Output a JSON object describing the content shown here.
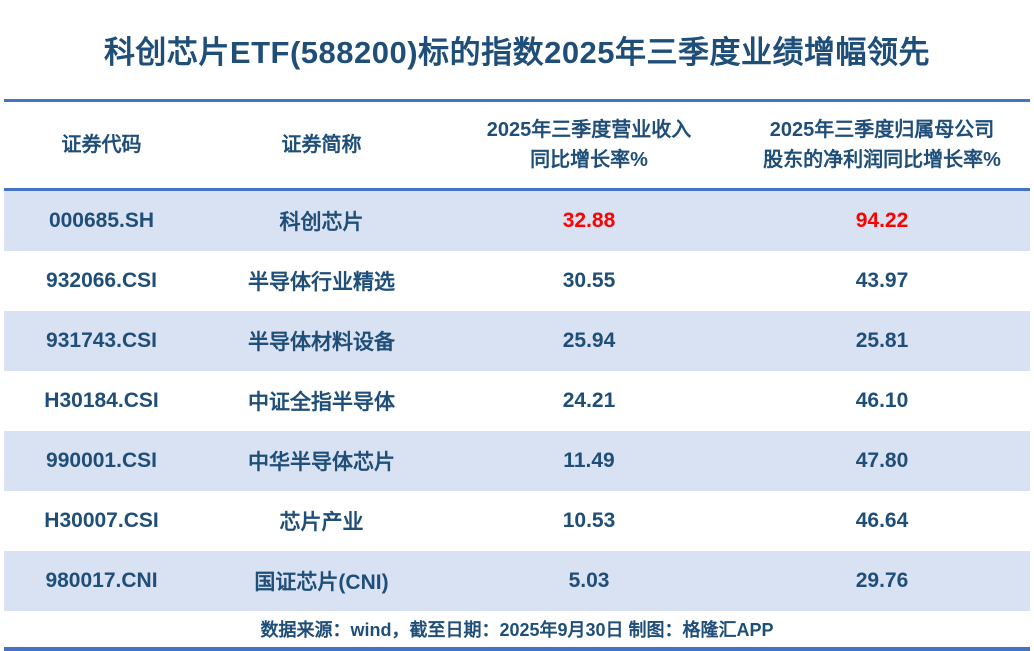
{
  "title": "科创芯片ETF(588200)标的指数2025年三季度业绩增幅领先",
  "table": {
    "headers": {
      "code": "证券代码",
      "name": "证券简称",
      "revenue_line1": "2025年三季度营业收入",
      "revenue_line2": "同比增长率%",
      "profit_line1": "2025年三季度归属母公司",
      "profit_line2": "股东的净利润同比增长率%"
    },
    "rows": [
      {
        "code": "000685.SH",
        "name": "科创芯片",
        "revenue": "32.88",
        "profit": "94.22"
      },
      {
        "code": "932066.CSI",
        "name": "半导体行业精选",
        "revenue": "30.55",
        "profit": "43.97"
      },
      {
        "code": "931743.CSI",
        "name": "半导体材料设备",
        "revenue": "25.94",
        "profit": "25.81"
      },
      {
        "code": "H30184.CSI",
        "name": "中证全指半导体",
        "revenue": "24.21",
        "profit": "46.10"
      },
      {
        "code": "990001.CSI",
        "name": "中华半导体芯片",
        "revenue": "11.49",
        "profit": "47.80"
      },
      {
        "code": "H30007.CSI",
        "name": "芯片产业",
        "revenue": "10.53",
        "profit": "46.64"
      },
      {
        "code": "980017.CNI",
        "name": "国证芯片(CNI)",
        "revenue": "5.03",
        "profit": "29.76"
      }
    ]
  },
  "footer": "数据来源：wind，截至日期：2025年9月30日 制图：格隆汇APP",
  "colors": {
    "accent_line": "#4472C4",
    "row_alt_bg": "#D9E2F3",
    "text_navy": "#1F4E79",
    "highlight_red": "#FF0000"
  },
  "chart_data": {
    "type": "table",
    "title": "科创芯片ETF(588200)标的指数2025年三季度业绩增幅领先",
    "columns": [
      "证券代码",
      "证券简称",
      "2025年三季度营业收入同比增长率%",
      "2025年三季度归属母公司股东的净利润同比增长率%"
    ],
    "rows": [
      [
        "000685.SH",
        "科创芯片",
        32.88,
        94.22
      ],
      [
        "932066.CSI",
        "半导体行业精选",
        30.55,
        43.97
      ],
      [
        "931743.CSI",
        "半导体材料设备",
        25.94,
        25.81
      ],
      [
        "H30184.CSI",
        "中证全指半导体",
        24.21,
        46.1
      ],
      [
        "990001.CSI",
        "中华半导体芯片",
        11.49,
        47.8
      ],
      [
        "H30007.CSI",
        "芯片产业",
        10.53,
        46.64
      ],
      [
        "980017.CNI",
        "国证芯片(CNI)",
        5.03,
        29.76
      ]
    ],
    "highlighted_row": "000685.SH",
    "source_note": "数据来源：wind，截至日期：2025年9月30日 制图：格隆汇APP"
  }
}
